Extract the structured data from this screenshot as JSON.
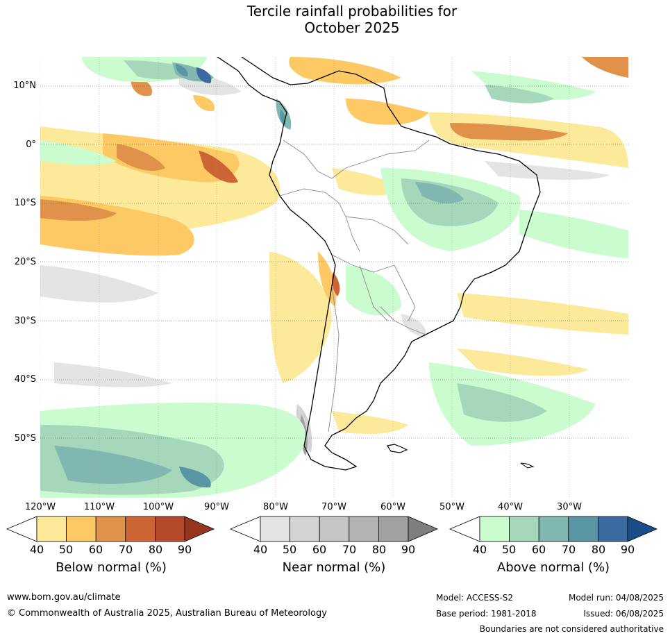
{
  "title_line1": "Tercile rainfall probabilities for",
  "title_line2": "October 2025",
  "lat_labels": [
    "10°N",
    "0°",
    "10°S",
    "20°S",
    "30°S",
    "40°S",
    "50°S"
  ],
  "lon_labels": [
    "120°W",
    "110°W",
    "100°W",
    "90°W",
    "80°W",
    "70°W",
    "60°W",
    "50°W",
    "40°W",
    "30°W"
  ],
  "colorbars": [
    {
      "label": "Below normal (%)",
      "ticks": [
        "40",
        "50",
        "60",
        "70",
        "80",
        "90"
      ],
      "colors": [
        "#ffffff",
        "#fde99a",
        "#fdc964",
        "#e0924a",
        "#cc6434",
        "#b44a2a",
        "#96361f"
      ]
    },
    {
      "label": "Near normal (%)",
      "ticks": [
        "40",
        "50",
        "60",
        "70",
        "80",
        "90"
      ],
      "colors": [
        "#ffffff",
        "#e4e4e4",
        "#d4d4d4",
        "#c5c5c5",
        "#b4b4b4",
        "#a1a1a1",
        "#7e7e7e"
      ]
    },
    {
      "label": "Above normal (%)",
      "ticks": [
        "40",
        "50",
        "60",
        "70",
        "80",
        "90"
      ],
      "colors": [
        "#ffffff",
        "#cafccf",
        "#a5d7bb",
        "#80b7b0",
        "#5a95a4",
        "#3a6aa0",
        "#1a4c87"
      ]
    }
  ],
  "footer": {
    "website": "www.bom.gov.au/climate",
    "copyright": "© Commonwealth of Australia 2025, Australian Bureau of Meteorology",
    "model": "Model: ACCESS-S2",
    "base_period": "Base period: 1981-2018",
    "model_run": "Model run: 04/08/2025",
    "issued": "Issued: 06/08/2025",
    "disclaimer": "Boundaries are not considered authoritative"
  }
}
